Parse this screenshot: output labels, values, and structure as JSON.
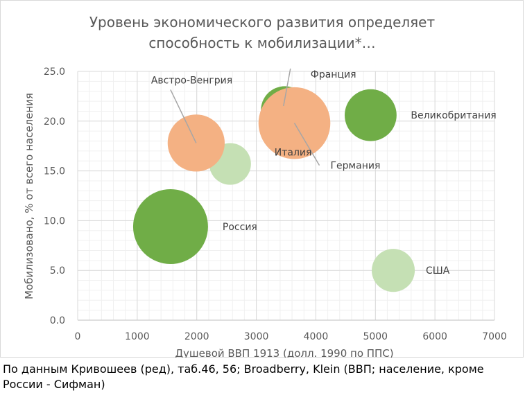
{
  "chart_data": {
    "type": "bubble",
    "title_lines": [
      "Уровень экономического развития определяет",
      "способность к мобилизации*…"
    ],
    "xlabel": "Душевой ВВП 1913 (долл. 1990 по ППС)",
    "ylabel": "Мобилизовано, % от всего населения",
    "xlim": [
      0,
      7000
    ],
    "ylim": [
      0,
      25
    ],
    "x_ticks": [
      "0",
      "1000",
      "2000",
      "3000",
      "4000",
      "5000",
      "6000",
      "7000"
    ],
    "y_ticks": [
      "0.0",
      "5.0",
      "10.0",
      "15.0",
      "20.0",
      "25.0"
    ],
    "grid": true,
    "colors": {
      "green": "#70ad47",
      "light_green": "#c5e0b4",
      "orange": "#f4b183",
      "leader": "#a6a6a6"
    },
    "series": [
      {
        "name": "Россия",
        "x": 1560,
        "y": 9.4,
        "size": 1.0,
        "color": "green"
      },
      {
        "name": "Италия",
        "x": 2560,
        "y": 15.7,
        "size": 0.31,
        "color": "light_green"
      },
      {
        "name": "Франция",
        "x": 3480,
        "y": 21.1,
        "size": 0.41,
        "color": "green"
      },
      {
        "name": "Великобритания",
        "x": 4920,
        "y": 20.6,
        "size": 0.48,
        "color": "green"
      },
      {
        "name": "США",
        "x": 5300,
        "y": 5.0,
        "size": 0.33,
        "color": "light_green"
      },
      {
        "name": "Австро-Венгрия",
        "x": 1990,
        "y": 17.8,
        "size": 0.58,
        "color": "orange"
      },
      {
        "name": "Германия",
        "x": 3640,
        "y": 19.8,
        "size": 0.92,
        "color": "orange"
      }
    ]
  },
  "footnote": "По  данным Кривошеев (ред), таб.46, 56; Broadberry, Klein (ВВП; население, кроме России - Сифман)"
}
